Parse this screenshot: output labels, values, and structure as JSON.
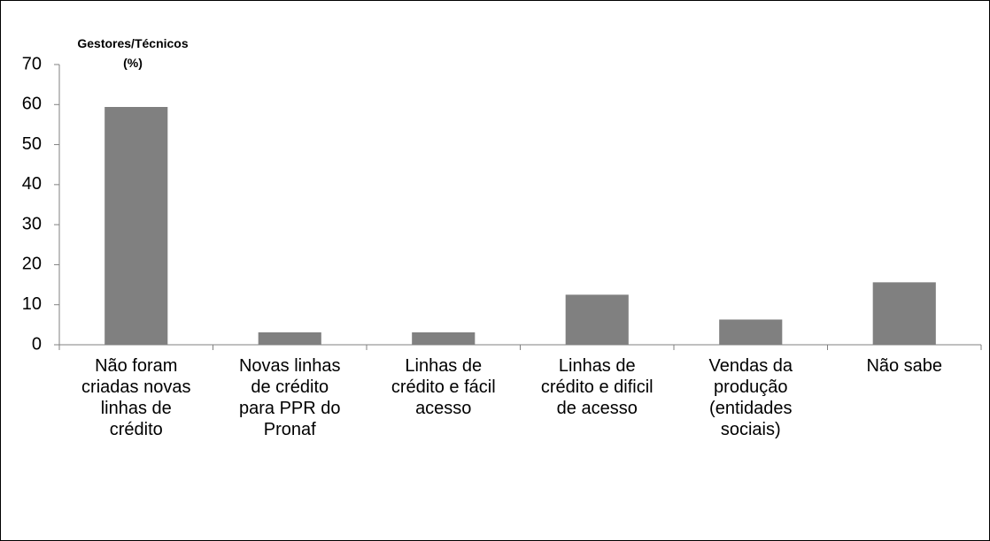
{
  "chart_data": {
    "type": "bar",
    "ylabel": "Gestores/Técnicos\n(%)",
    "categories": [
      "Não foram\ncriadas novas\nlinhas de\ncrédito",
      "Novas linhas\nde crédito\npara PPR do\nPronaf",
      "Linhas de\ncrédito e fácil\nacesso",
      "Linhas de\ncrédito e dificil\nde acesso",
      "Vendas da\nprodução\n(entidades\nsociais)",
      "Não sabe"
    ],
    "values": [
      59.4,
      3.1,
      3.1,
      12.5,
      6.3,
      15.6
    ],
    "color": "#808080",
    "ylim": [
      0,
      70
    ],
    "yticks": [
      0,
      10,
      20,
      30,
      40,
      50,
      60,
      70
    ],
    "grid": false
  }
}
